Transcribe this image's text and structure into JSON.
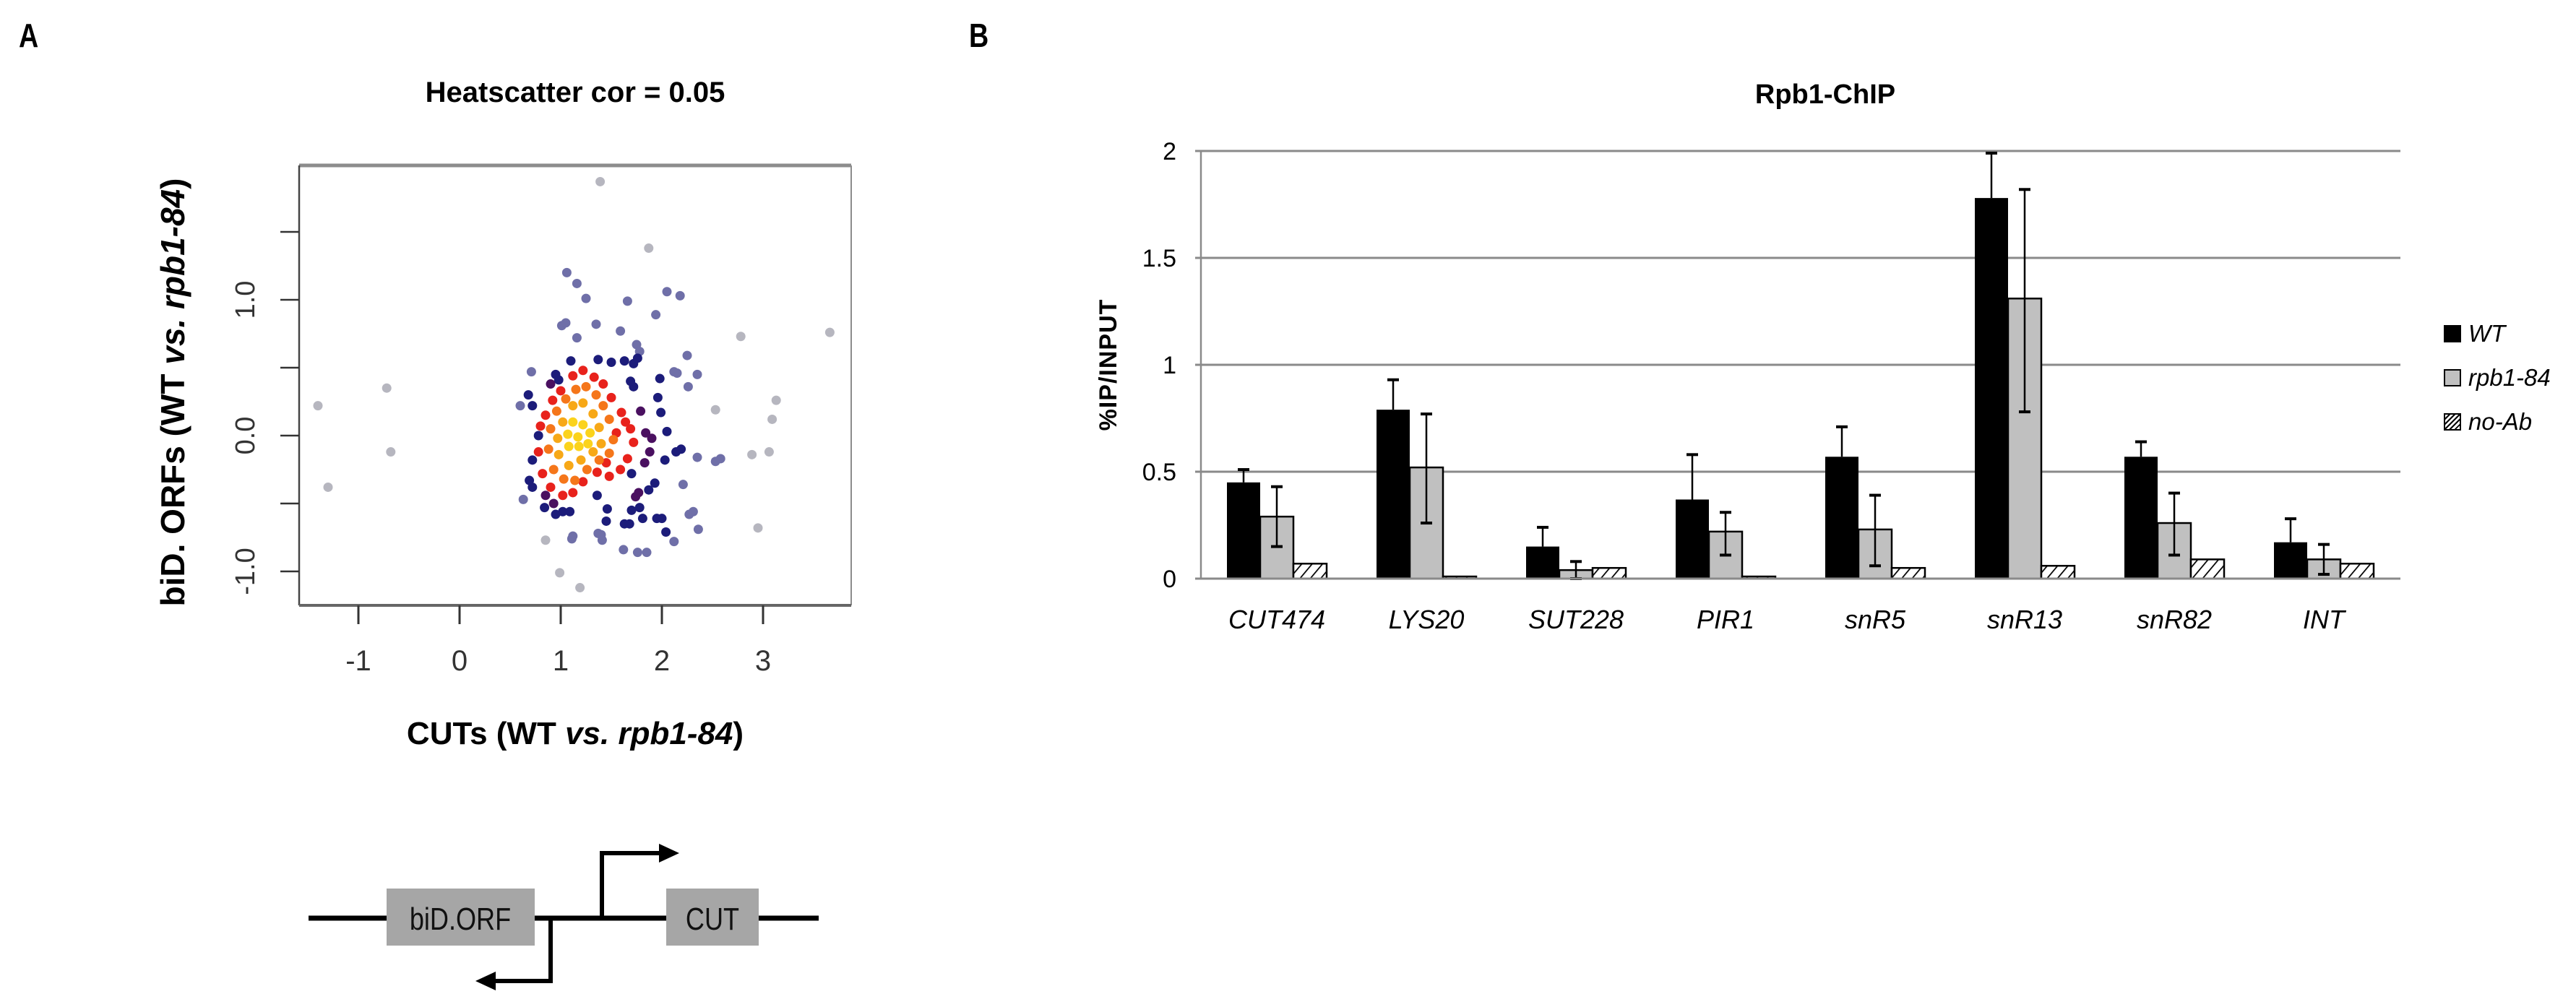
{
  "panels": {
    "a_label": "A",
    "b_label": "B"
  },
  "diagram": {
    "box1_label": "biD.ORF",
    "box2_label": "CUT",
    "box_color": "#a6a6a6"
  },
  "chart_data": [
    {
      "type": "scatter",
      "title": "Heatscatter  cor =  0.05",
      "xlabel": "CUTs (WT vs. rpb1-84)",
      "xlabel_parts": [
        "CUTs (WT ",
        "vs. rpb1-84",
        ")"
      ],
      "ylabel": "biD. ORFs (WT vs. rpb1-84)",
      "ylabel_parts": [
        "biD. ORFs (WT ",
        "vs. rpb1-84",
        ")"
      ],
      "xticks": [
        -1,
        0,
        1,
        2,
        3
      ],
      "xtick_labels": [
        "-1",
        "0",
        "1",
        "2",
        "3"
      ],
      "yticks": [
        -1.0,
        -0.5,
        0.0,
        0.5,
        1.0,
        1.5
      ],
      "ytick_labels": [
        "-1.0",
        "",
        "0.0",
        "",
        "1.0",
        ""
      ],
      "xlim": [
        -1.6,
        3.85
      ],
      "ylim": [
        -1.25,
        2.0
      ],
      "correlation": 0.05,
      "density_colors": {
        "gray": "#a9a9b4",
        "lavender": "#6f6fa8",
        "navy": "#1c1c7a",
        "purple": "#4a1060",
        "red": "#e8221c",
        "orange": "#f5761a",
        "amber": "#f7a817",
        "yellow": "#fbd31c"
      },
      "points": [
        {
          "x": 1.39,
          "y": 1.87,
          "c": "gray"
        },
        {
          "x": 1.87,
          "y": 1.38,
          "c": "gray"
        },
        {
          "x": 3.66,
          "y": 0.76,
          "c": "gray"
        },
        {
          "x": 2.78,
          "y": 0.73,
          "c": "gray"
        },
        {
          "x": -1.4,
          "y": 0.22,
          "c": "gray"
        },
        {
          "x": -0.72,
          "y": 0.35,
          "c": "gray"
        },
        {
          "x": -0.68,
          "y": -0.12,
          "c": "gray"
        },
        {
          "x": -1.3,
          "y": -0.38,
          "c": "gray"
        },
        {
          "x": 3.13,
          "y": 0.26,
          "c": "gray"
        },
        {
          "x": 3.09,
          "y": 0.12,
          "c": "gray"
        },
        {
          "x": 3.06,
          "y": -0.12,
          "c": "gray"
        },
        {
          "x": 2.89,
          "y": -0.14,
          "c": "gray"
        },
        {
          "x": 2.53,
          "y": 0.19,
          "c": "gray"
        },
        {
          "x": 2.95,
          "y": -0.68,
          "c": "gray"
        },
        {
          "x": 0.99,
          "y": -1.01,
          "c": "gray"
        },
        {
          "x": 1.19,
          "y": -1.12,
          "c": "gray"
        },
        {
          "x": 0.85,
          "y": -0.77,
          "c": "gray"
        },
        {
          "x": 1.06,
          "y": 1.2,
          "c": "lavender"
        },
        {
          "x": 1.16,
          "y": 1.12,
          "c": "lavender"
        },
        {
          "x": 1.25,
          "y": 1.01,
          "c": "lavender"
        },
        {
          "x": 1.66,
          "y": 0.99,
          "c": "lavender"
        },
        {
          "x": 2.05,
          "y": 1.06,
          "c": "lavender"
        },
        {
          "x": 2.18,
          "y": 1.03,
          "c": "lavender"
        },
        {
          "x": 1.94,
          "y": 0.89,
          "c": "lavender"
        },
        {
          "x": 1.59,
          "y": 0.77,
          "c": "lavender"
        },
        {
          "x": 1.35,
          "y": 0.82,
          "c": "lavender"
        },
        {
          "x": 1.01,
          "y": 0.81,
          "c": "lavender"
        },
        {
          "x": 1.05,
          "y": 0.83,
          "c": "lavender"
        },
        {
          "x": 1.16,
          "y": 0.72,
          "c": "lavender"
        },
        {
          "x": 2.25,
          "y": 0.59,
          "c": "lavender"
        },
        {
          "x": 2.26,
          "y": 0.36,
          "c": "lavender"
        },
        {
          "x": 2.35,
          "y": 0.45,
          "c": "lavender"
        },
        {
          "x": 2.15,
          "y": 0.46,
          "c": "lavender"
        },
        {
          "x": 2.12,
          "y": 0.47,
          "c": "lavender"
        },
        {
          "x": 2.58,
          "y": -0.17,
          "c": "lavender"
        },
        {
          "x": 2.53,
          "y": -0.19,
          "c": "lavender"
        },
        {
          "x": 2.35,
          "y": -0.16,
          "c": "lavender"
        },
        {
          "x": 2.21,
          "y": -0.36,
          "c": "lavender"
        },
        {
          "x": 2.36,
          "y": -0.69,
          "c": "lavender"
        },
        {
          "x": 2.12,
          "y": -0.78,
          "c": "lavender"
        },
        {
          "x": 1.76,
          "y": -0.86,
          "c": "lavender"
        },
        {
          "x": 1.85,
          "y": -0.86,
          "c": "lavender"
        },
        {
          "x": 1.62,
          "y": -0.84,
          "c": "lavender"
        },
        {
          "x": 1.41,
          "y": -0.77,
          "c": "lavender"
        },
        {
          "x": 1.11,
          "y": -0.76,
          "c": "lavender"
        },
        {
          "x": 1.12,
          "y": -0.74,
          "c": "lavender"
        },
        {
          "x": 0.63,
          "y": -0.47,
          "c": "lavender"
        },
        {
          "x": 0.6,
          "y": 0.22,
          "c": "lavender"
        },
        {
          "x": 0.71,
          "y": 0.47,
          "c": "lavender"
        },
        {
          "x": 2.31,
          "y": -0.56,
          "c": "lavender"
        },
        {
          "x": 2.27,
          "y": -0.58,
          "c": "lavender"
        },
        {
          "x": 1.75,
          "y": 0.67,
          "c": "lavender"
        },
        {
          "x": 1.78,
          "y": 0.62,
          "c": "lavender"
        },
        {
          "x": 1.37,
          "y": -0.72,
          "c": "lavender"
        },
        {
          "x": 1.4,
          "y": -0.73,
          "c": "lavender"
        },
        {
          "x": 1.1,
          "y": 0.55,
          "c": "navy"
        },
        {
          "x": 1.37,
          "y": 0.56,
          "c": "navy"
        },
        {
          "x": 1.5,
          "y": 0.54,
          "c": "navy"
        },
        {
          "x": 1.63,
          "y": 0.55,
          "c": "navy"
        },
        {
          "x": 1.72,
          "y": 0.53,
          "c": "navy"
        },
        {
          "x": 1.76,
          "y": 0.57,
          "c": "navy"
        },
        {
          "x": 1.98,
          "y": 0.42,
          "c": "navy"
        },
        {
          "x": 1.96,
          "y": 0.28,
          "c": "navy"
        },
        {
          "x": 1.99,
          "y": 0.17,
          "c": "navy"
        },
        {
          "x": 2.05,
          "y": 0.03,
          "c": "navy"
        },
        {
          "x": 2.14,
          "y": -0.12,
          "c": "navy"
        },
        {
          "x": 2.19,
          "y": -0.1,
          "c": "navy"
        },
        {
          "x": 2.03,
          "y": -0.18,
          "c": "navy"
        },
        {
          "x": 0.72,
          "y": 0.22,
          "c": "navy"
        },
        {
          "x": 0.68,
          "y": 0.3,
          "c": "navy"
        },
        {
          "x": 0.95,
          "y": 0.45,
          "c": "navy"
        },
        {
          "x": 0.98,
          "y": 0.41,
          "c": "navy"
        },
        {
          "x": 0.69,
          "y": -0.33,
          "c": "navy"
        },
        {
          "x": 0.72,
          "y": -0.38,
          "c": "navy"
        },
        {
          "x": 0.84,
          "y": -0.53,
          "c": "navy"
        },
        {
          "x": 0.95,
          "y": -0.58,
          "c": "navy"
        },
        {
          "x": 1.02,
          "y": -0.56,
          "c": "navy"
        },
        {
          "x": 1.09,
          "y": -0.56,
          "c": "navy"
        },
        {
          "x": 1.36,
          "y": -0.44,
          "c": "navy"
        },
        {
          "x": 1.46,
          "y": -0.54,
          "c": "navy"
        },
        {
          "x": 1.45,
          "y": -0.63,
          "c": "navy"
        },
        {
          "x": 1.63,
          "y": -0.65,
          "c": "navy"
        },
        {
          "x": 1.68,
          "y": -0.65,
          "c": "navy"
        },
        {
          "x": 1.7,
          "y": -0.55,
          "c": "navy"
        },
        {
          "x": 1.78,
          "y": -0.53,
          "c": "navy"
        },
        {
          "x": 1.81,
          "y": -0.61,
          "c": "navy"
        },
        {
          "x": 1.95,
          "y": -0.61,
          "c": "navy"
        },
        {
          "x": 2.0,
          "y": -0.61,
          "c": "navy"
        },
        {
          "x": 2.04,
          "y": -0.71,
          "c": "navy"
        },
        {
          "x": 1.87,
          "y": -0.4,
          "c": "navy"
        },
        {
          "x": 1.93,
          "y": -0.35,
          "c": "navy"
        },
        {
          "x": 1.7,
          "y": -0.28,
          "c": "navy"
        },
        {
          "x": 1.72,
          "y": 0.36,
          "c": "navy"
        },
        {
          "x": 1.69,
          "y": 0.4,
          "c": "navy"
        },
        {
          "x": 0.78,
          "y": 0.0,
          "c": "navy"
        },
        {
          "x": 0.72,
          "y": -0.18,
          "c": "navy"
        },
        {
          "x": 1.79,
          "y": 0.18,
          "c": "purple"
        },
        {
          "x": 1.84,
          "y": 0.02,
          "c": "purple"
        },
        {
          "x": 1.9,
          "y": -0.02,
          "c": "purple"
        },
        {
          "x": 1.88,
          "y": -0.12,
          "c": "purple"
        },
        {
          "x": 1.83,
          "y": -0.2,
          "c": "purple"
        },
        {
          "x": 1.77,
          "y": -0.42,
          "c": "purple"
        },
        {
          "x": 1.74,
          "y": -0.45,
          "c": "purple"
        },
        {
          "x": 0.85,
          "y": -0.44,
          "c": "purple"
        },
        {
          "x": 0.93,
          "y": -0.5,
          "c": "purple"
        },
        {
          "x": 0.9,
          "y": 0.38,
          "c": "purple"
        },
        {
          "x": 1.12,
          "y": 0.44,
          "c": "red"
        },
        {
          "x": 1.22,
          "y": 0.48,
          "c": "red"
        },
        {
          "x": 1.33,
          "y": 0.43,
          "c": "red"
        },
        {
          "x": 1.42,
          "y": 0.38,
          "c": "red"
        },
        {
          "x": 1.5,
          "y": 0.28,
          "c": "red"
        },
        {
          "x": 1.6,
          "y": 0.17,
          "c": "red"
        },
        {
          "x": 1.64,
          "y": 0.1,
          "c": "red"
        },
        {
          "x": 1.69,
          "y": 0.05,
          "c": "red"
        },
        {
          "x": 1.72,
          "y": -0.05,
          "c": "red"
        },
        {
          "x": 1.66,
          "y": -0.17,
          "c": "red"
        },
        {
          "x": 1.59,
          "y": -0.25,
          "c": "red"
        },
        {
          "x": 1.48,
          "y": -0.3,
          "c": "red"
        },
        {
          "x": 1.36,
          "y": -0.27,
          "c": "red"
        },
        {
          "x": 1.22,
          "y": -0.34,
          "c": "red"
        },
        {
          "x": 1.12,
          "y": -0.42,
          "c": "red"
        },
        {
          "x": 1.02,
          "y": -0.44,
          "c": "red"
        },
        {
          "x": 0.9,
          "y": -0.38,
          "c": "red"
        },
        {
          "x": 0.82,
          "y": -0.28,
          "c": "red"
        },
        {
          "x": 0.78,
          "y": -0.12,
          "c": "red"
        },
        {
          "x": 0.8,
          "y": 0.07,
          "c": "red"
        },
        {
          "x": 0.85,
          "y": 0.15,
          "c": "red"
        },
        {
          "x": 0.92,
          "y": 0.26,
          "c": "red"
        },
        {
          "x": 1.0,
          "y": 0.33,
          "c": "red"
        },
        {
          "x": 1.55,
          "y": 0.02,
          "c": "red"
        },
        {
          "x": 1.45,
          "y": -0.2,
          "c": "red"
        },
        {
          "x": 1.15,
          "y": 0.34,
          "c": "orange"
        },
        {
          "x": 1.25,
          "y": 0.36,
          "c": "orange"
        },
        {
          "x": 1.35,
          "y": 0.3,
          "c": "orange"
        },
        {
          "x": 1.42,
          "y": 0.22,
          "c": "orange"
        },
        {
          "x": 1.48,
          "y": 0.12,
          "c": "orange"
        },
        {
          "x": 1.52,
          "y": -0.03,
          "c": "orange"
        },
        {
          "x": 1.48,
          "y": -0.13,
          "c": "orange"
        },
        {
          "x": 1.38,
          "y": -0.18,
          "c": "orange"
        },
        {
          "x": 1.26,
          "y": -0.25,
          "c": "orange"
        },
        {
          "x": 1.14,
          "y": -0.33,
          "c": "orange"
        },
        {
          "x": 1.03,
          "y": -0.32,
          "c": "orange"
        },
        {
          "x": 0.93,
          "y": -0.25,
          "c": "orange"
        },
        {
          "x": 0.88,
          "y": -0.1,
          "c": "orange"
        },
        {
          "x": 0.9,
          "y": 0.05,
          "c": "orange"
        },
        {
          "x": 0.96,
          "y": 0.18,
          "c": "orange"
        },
        {
          "x": 1.05,
          "y": 0.27,
          "c": "orange"
        },
        {
          "x": 1.12,
          "y": 0.22,
          "c": "amber"
        },
        {
          "x": 1.22,
          "y": 0.24,
          "c": "amber"
        },
        {
          "x": 1.32,
          "y": 0.16,
          "c": "amber"
        },
        {
          "x": 1.38,
          "y": 0.06,
          "c": "amber"
        },
        {
          "x": 1.4,
          "y": -0.06,
          "c": "amber"
        },
        {
          "x": 1.32,
          "y": -0.12,
          "c": "amber"
        },
        {
          "x": 1.2,
          "y": -0.18,
          "c": "amber"
        },
        {
          "x": 1.08,
          "y": -0.22,
          "c": "amber"
        },
        {
          "x": 0.98,
          "y": -0.14,
          "c": "amber"
        },
        {
          "x": 0.97,
          "y": -0.02,
          "c": "amber"
        },
        {
          "x": 1.02,
          "y": 0.1,
          "c": "amber"
        },
        {
          "x": 1.12,
          "y": 0.1,
          "c": "yellow"
        },
        {
          "x": 1.22,
          "y": 0.08,
          "c": "yellow"
        },
        {
          "x": 1.29,
          "y": 0.02,
          "c": "yellow"
        },
        {
          "x": 1.27,
          "y": -0.06,
          "c": "yellow"
        },
        {
          "x": 1.18,
          "y": -0.08,
          "c": "yellow"
        },
        {
          "x": 1.08,
          "y": -0.08,
          "c": "yellow"
        },
        {
          "x": 1.07,
          "y": 0.01,
          "c": "yellow"
        },
        {
          "x": 1.17,
          "y": -0.01,
          "c": "yellow"
        }
      ]
    },
    {
      "type": "bar",
      "title": "Rpb1-ChIP",
      "xlabel": "",
      "ylabel": "%IP/INPUT",
      "ylim": [
        0,
        2
      ],
      "yticks": [
        0,
        0.5,
        1,
        1.5,
        2
      ],
      "ytick_labels": [
        "0",
        "0.5",
        "1",
        "1.5",
        "2"
      ],
      "grid": true,
      "legend_position": "right",
      "categories": [
        "CUT474",
        "LYS20",
        "SUT228",
        "PIR1",
        "snR5",
        "snR13",
        "snR82",
        "INT"
      ],
      "series": [
        {
          "name": "WT",
          "fill": "#000000",
          "pattern": "solid",
          "values": [
            0.45,
            0.79,
            0.15,
            0.37,
            0.57,
            1.78,
            0.57,
            0.17
          ],
          "err_high": [
            0.51,
            0.93,
            0.24,
            0.58,
            0.71,
            1.99,
            0.64,
            0.28
          ],
          "err_low": [
            null,
            null,
            null,
            null,
            null,
            null,
            null,
            null
          ]
        },
        {
          "name": "rpb1-84",
          "fill": "#c0c0c0",
          "pattern": "solid",
          "values": [
            0.29,
            0.52,
            0.04,
            0.22,
            0.23,
            1.31,
            0.26,
            0.09
          ],
          "err_high": [
            0.43,
            0.77,
            0.08,
            0.31,
            0.39,
            1.82,
            0.4,
            0.16
          ],
          "err_low": [
            0.15,
            0.26,
            0.0,
            0.11,
            0.06,
            0.78,
            0.11,
            0.02
          ]
        },
        {
          "name": "no-Ab",
          "fill": "#ffffff",
          "pattern": "hatch",
          "values": [
            0.07,
            0.01,
            0.05,
            0.01,
            0.05,
            0.06,
            0.09,
            0.07
          ],
          "err_high": [
            null,
            null,
            null,
            null,
            null,
            null,
            null,
            null
          ],
          "err_low": [
            null,
            null,
            null,
            null,
            null,
            null,
            null,
            null
          ]
        }
      ]
    }
  ]
}
